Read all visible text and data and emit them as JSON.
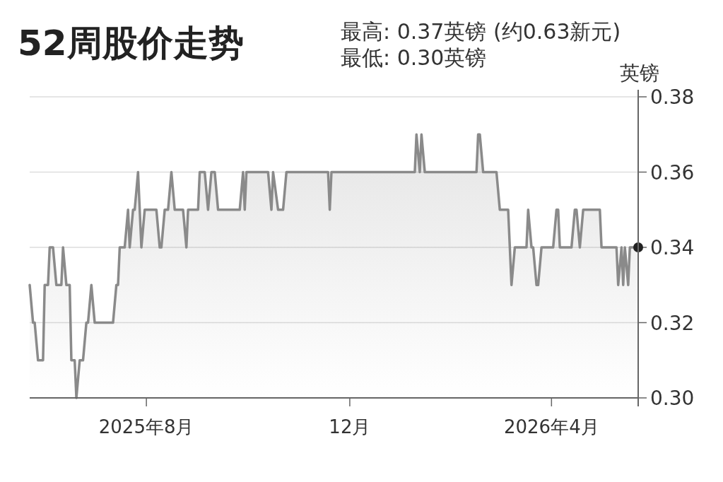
{
  "chart_data": {
    "type": "area",
    "title": "52周股价走势",
    "annotations": [
      "最高: 0.37英镑 (约0.63新元)",
      "最低: 0.30英镑"
    ],
    "ylabel": "英镑",
    "x": [
      "2025-05-23",
      "2025-05-25",
      "2025-05-26",
      "2025-05-28",
      "2025-05-31",
      "2025-06-01",
      "2025-06-03",
      "2025-06-04",
      "2025-06-06",
      "2025-06-08",
      "2025-06-11",
      "2025-06-12",
      "2025-06-14",
      "2025-06-16",
      "2025-06-17",
      "2025-06-19",
      "2025-06-20",
      "2025-06-22",
      "2025-06-24",
      "2025-06-26",
      "2025-06-27",
      "2025-06-29",
      "2025-07-01",
      "2025-07-12",
      "2025-07-14",
      "2025-07-15",
      "2025-07-16",
      "2025-07-19",
      "2025-07-21",
      "2025-07-22",
      "2025-07-24",
      "2025-07-25",
      "2025-07-27",
      "2025-07-29",
      "2025-07-31",
      "2025-08-07",
      "2025-08-09",
      "2025-08-10",
      "2025-08-12",
      "2025-08-14",
      "2025-08-16",
      "2025-08-18",
      "2025-08-23",
      "2025-08-25",
      "2025-08-26",
      "2025-09-01",
      "2025-09-02",
      "2025-09-05",
      "2025-09-07",
      "2025-09-09",
      "2025-09-11",
      "2025-09-13",
      "2025-09-26",
      "2025-09-28",
      "2025-09-29",
      "2025-09-30",
      "2025-10-13",
      "2025-10-15",
      "2025-10-16",
      "2025-10-19",
      "2025-10-22",
      "2025-10-24",
      "2025-11-18",
      "2025-11-19",
      "2025-11-20",
      "2026-01-09",
      "2026-01-10",
      "2026-01-12",
      "2026-01-13",
      "2026-01-15",
      "2026-02-15",
      "2026-02-16",
      "2026-02-17",
      "2026-02-19",
      "2026-02-27",
      "2026-03-01",
      "2026-03-06",
      "2026-03-08",
      "2026-03-10",
      "2026-03-17",
      "2026-03-18",
      "2026-03-20",
      "2026-03-21",
      "2026-03-23",
      "2026-03-24",
      "2026-03-26",
      "2026-04-02",
      "2026-04-04",
      "2026-04-05",
      "2026-04-06",
      "2026-04-13",
      "2026-04-15",
      "2026-04-16",
      "2026-04-18",
      "2026-04-20",
      "2026-04-30",
      "2026-05-01",
      "2026-05-10",
      "2026-05-11",
      "2026-05-13",
      "2026-05-14",
      "2026-05-15",
      "2026-05-17",
      "2026-05-18",
      "2026-05-23"
    ],
    "series": [
      {
        "color": "#8a8a8a",
        "values": [
          0.33,
          0.32,
          0.32,
          0.31,
          0.31,
          0.33,
          0.33,
          0.34,
          0.34,
          0.33,
          0.33,
          0.34,
          0.33,
          0.33,
          0.31,
          0.31,
          0.3,
          0.31,
          0.31,
          0.32,
          0.32,
          0.33,
          0.32,
          0.32,
          0.33,
          0.33,
          0.34,
          0.34,
          0.35,
          0.34,
          0.35,
          0.35,
          0.36,
          0.34,
          0.35,
          0.35,
          0.34,
          0.34,
          0.35,
          0.35,
          0.36,
          0.35,
          0.35,
          0.34,
          0.35,
          0.35,
          0.36,
          0.36,
          0.35,
          0.36,
          0.36,
          0.35,
          0.35,
          0.36,
          0.35,
          0.36,
          0.36,
          0.35,
          0.36,
          0.35,
          0.35,
          0.36,
          0.36,
          0.35,
          0.36,
          0.36,
          0.37,
          0.36,
          0.37,
          0.36,
          0.36,
          0.37,
          0.37,
          0.36,
          0.36,
          0.35,
          0.35,
          0.33,
          0.34,
          0.34,
          0.35,
          0.34,
          0.34,
          0.33,
          0.33,
          0.34,
          0.34,
          0.35,
          0.35,
          0.34,
          0.34,
          0.35,
          0.35,
          0.34,
          0.35,
          0.35,
          0.34,
          0.34,
          0.33,
          0.34,
          0.33,
          0.34,
          0.33,
          0.34,
          0.34
        ]
      }
    ],
    "xlim": [
      "2025-05-23",
      "2026-05-23"
    ],
    "xticks": [
      {
        "value": "2025-08",
        "label": "2025年8月"
      },
      {
        "value": "2025-12",
        "label": "12月"
      },
      {
        "value": "2026-04",
        "label": "2026年4月"
      }
    ],
    "ylim": [
      0.3,
      0.38
    ],
    "yticks": [
      {
        "value": 0.3,
        "label": "0.30"
      },
      {
        "value": 0.32,
        "label": "0.32"
      },
      {
        "value": 0.34,
        "label": "0.34"
      },
      {
        "value": 0.36,
        "label": "0.36"
      },
      {
        "value": 0.38,
        "label": "0.38"
      }
    ],
    "grid": "y"
  }
}
